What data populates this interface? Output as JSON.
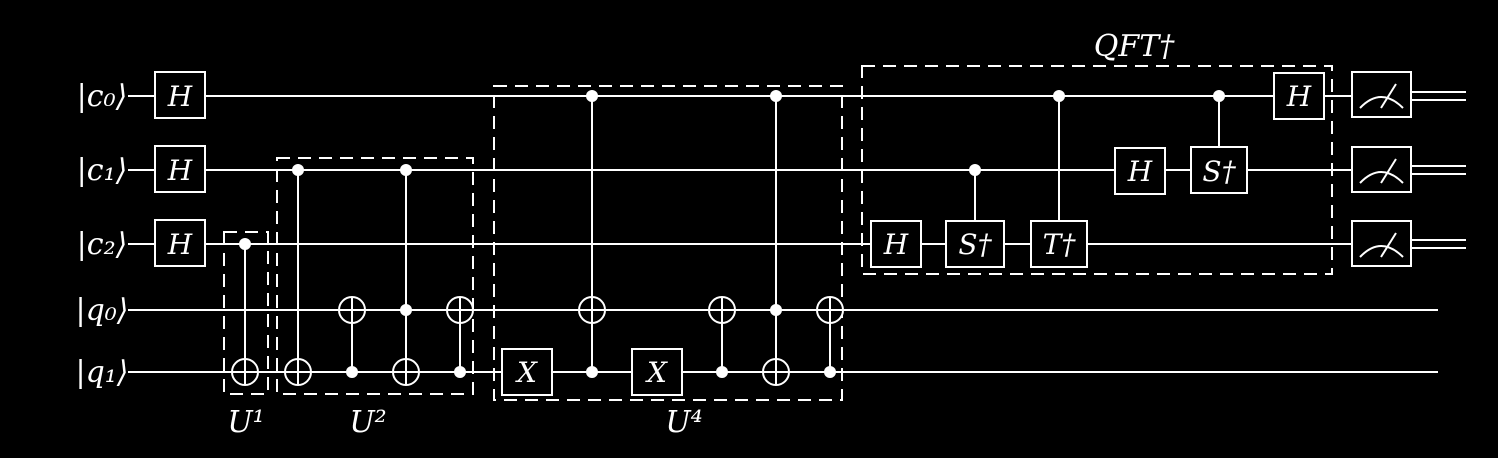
{
  "background": "#000000",
  "foreground": "#ffffff",
  "qubits": [
    {
      "id": "c0",
      "label": "|c₀⟩"
    },
    {
      "id": "c1",
      "label": "|c₁⟩"
    },
    {
      "id": "c2",
      "label": "|c₂⟩"
    },
    {
      "id": "q0",
      "label": "|q₀⟩"
    },
    {
      "id": "q1",
      "label": "|q₁⟩"
    }
  ],
  "gates": [
    {
      "type": "box",
      "label": "H",
      "qubit": "c0"
    },
    {
      "type": "box",
      "label": "H",
      "qubit": "c1"
    },
    {
      "type": "box",
      "label": "H",
      "qubit": "c2"
    },
    {
      "type": "cnot",
      "control": "c2",
      "target": "q1"
    },
    {
      "type": "cnot",
      "control": "c1",
      "target": "q1"
    },
    {
      "type": "cnot",
      "control": "q1",
      "target": "q0"
    },
    {
      "type": "toffoli",
      "controls": [
        "c1",
        "q0"
      ],
      "target": "q1"
    },
    {
      "type": "cnot",
      "control": "q1",
      "target": "q0"
    },
    {
      "type": "box",
      "label": "X",
      "qubit": "q1"
    },
    {
      "type": "toffoli",
      "controls": [
        "c0",
        "q1"
      ],
      "target": "q0"
    },
    {
      "type": "box",
      "label": "X",
      "qubit": "q1"
    },
    {
      "type": "cnot",
      "control": "q1",
      "target": "q0"
    },
    {
      "type": "toffoli",
      "controls": [
        "c0",
        "q0"
      ],
      "target": "q1"
    },
    {
      "type": "cnot",
      "control": "q1",
      "target": "q0"
    },
    {
      "type": "box",
      "label": "H",
      "qubit": "c2"
    },
    {
      "type": "controlled-box",
      "label": "S†",
      "control": "c1",
      "target": "c2"
    },
    {
      "type": "controlled-box",
      "label": "T†",
      "control": "c0",
      "target": "c2"
    },
    {
      "type": "box",
      "label": "H",
      "qubit": "c1"
    },
    {
      "type": "controlled-box",
      "label": "S†",
      "control": "c0",
      "target": "c1"
    },
    {
      "type": "box",
      "label": "H",
      "qubit": "c0"
    },
    {
      "type": "measure",
      "qubit": "c0"
    },
    {
      "type": "measure",
      "qubit": "c1"
    },
    {
      "type": "measure",
      "qubit": "c2"
    }
  ],
  "groups": [
    {
      "label": "U¹"
    },
    {
      "label": "U²"
    },
    {
      "label": "U⁴"
    },
    {
      "label": "QFT†"
    }
  ]
}
